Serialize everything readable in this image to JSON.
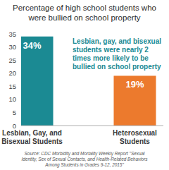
{
  "chart_data": {
    "type": "bar",
    "title": "Percentage of high school students who were bullied on school property",
    "categories": [
      "Lesbian, Gay, and Bisexual Students",
      "Heterosexual Students"
    ],
    "values": [
      34,
      19
    ],
    "value_labels": [
      "34%",
      "19%"
    ],
    "colors": [
      "#1b8a93",
      "#ec7a2d"
    ],
    "ylim": [
      0,
      35
    ],
    "yticks": [
      0,
      5,
      10,
      15,
      20,
      25,
      30,
      35
    ],
    "grid": false,
    "data_labels": true,
    "annotation": "Lesbian, gay, and bisexual students were nearly 2 times more likely to be bullied on school property",
    "source": "Source: CDC Morbidity and Mortality Weekly Report \"Sexual Identity, Sex of Sexual Contacts, and Health-Related Behaviors Among Students in Grades 9-12, 2015\""
  }
}
